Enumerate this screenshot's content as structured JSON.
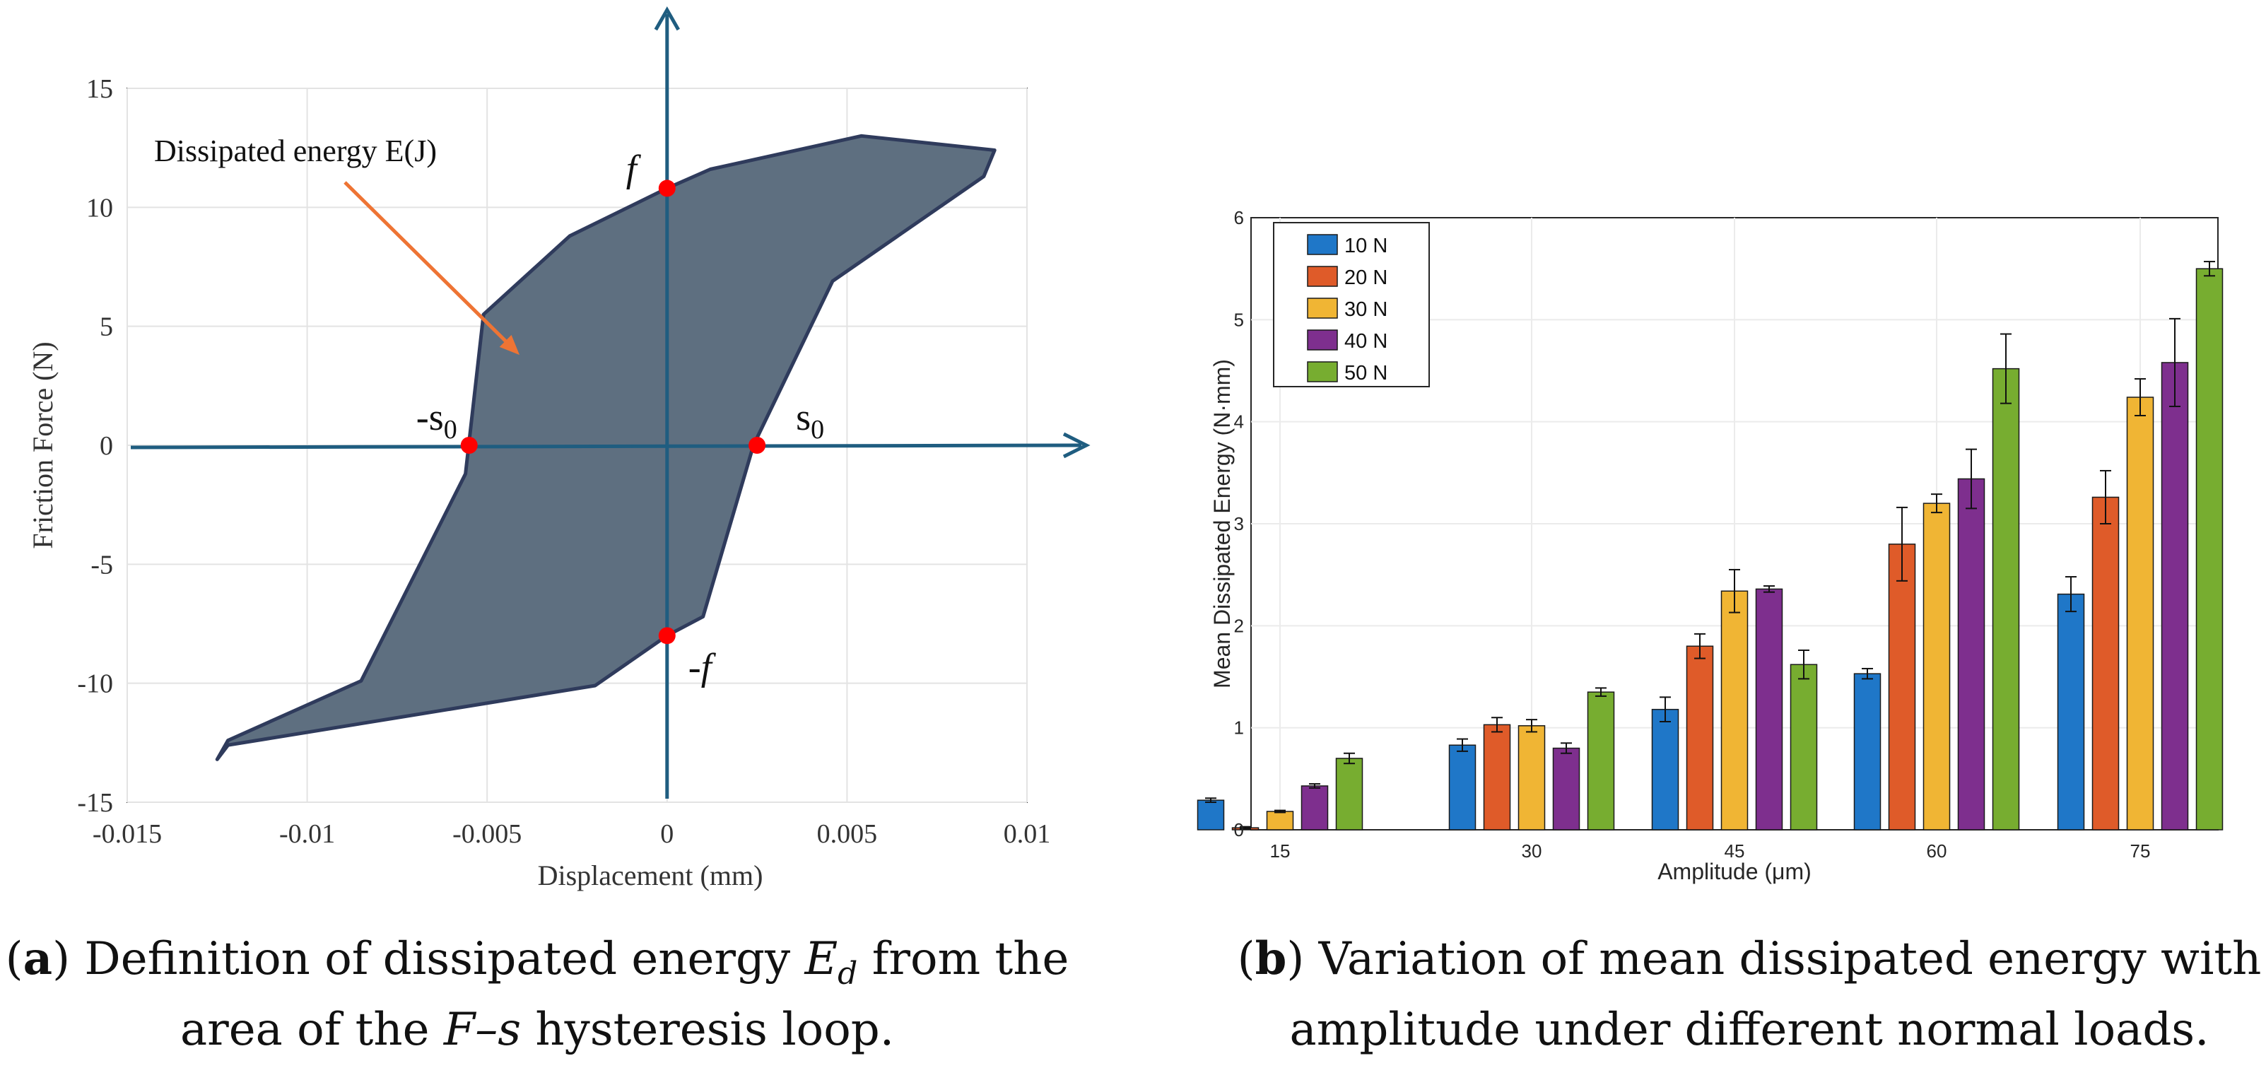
{
  "chart_data": [
    {
      "id": "a",
      "type": "area",
      "title": "",
      "xlabel": "Displacement (mm)",
      "ylabel": "Friction Force (N)",
      "xlim": [
        -0.015,
        0.01
      ],
      "ylim": [
        -15,
        15
      ],
      "xticks": [
        -0.015,
        -0.01,
        -0.005,
        0,
        0.005,
        0.01
      ],
      "xtick_labels": [
        "-0.015",
        "-0.01",
        "-0.005",
        "0",
        "0.005",
        "0.01"
      ],
      "yticks": [
        15,
        10,
        5,
        0,
        -5,
        -10,
        -15
      ],
      "ytick_labels": [
        "15",
        "10",
        "5",
        "0",
        "-5",
        "-10",
        "-15"
      ],
      "grid": true,
      "loop": [
        [
          -0.0125,
          -13.2
        ],
        [
          -0.0122,
          -12.4
        ],
        [
          -0.0085,
          -9.9
        ],
        [
          -0.0056,
          -1.2
        ],
        [
          -0.0051,
          5.5
        ],
        [
          -0.0027,
          8.8
        ],
        [
          0,
          10.8
        ],
        [
          0.0012,
          11.6
        ],
        [
          0.0054,
          13.0
        ],
        [
          0.0091,
          12.4
        ],
        [
          0.0088,
          11.3
        ],
        [
          0.0046,
          6.9
        ],
        [
          0.0024,
          0
        ],
        [
          0.001,
          -7.2
        ],
        [
          0,
          -8.0
        ],
        [
          -0.002,
          -10.1
        ],
        [
          -0.0122,
          -12.6
        ]
      ],
      "points": [
        {
          "x": -0.0055,
          "y": 0,
          "label": "-s0",
          "sub": "0"
        },
        {
          "x": 0.0025,
          "y": 0,
          "label": "s0",
          "sub": "0"
        },
        {
          "x": 0,
          "y": 10.8,
          "label": "f"
        },
        {
          "x": 0,
          "y": -8.0,
          "label": "-f"
        }
      ],
      "annotation": {
        "text": "Dissipated energy E(J)",
        "arrow_to": [
          -0.0041,
          3.8
        ]
      },
      "caption": {
        "tag": "a",
        "line1": "Definition of dissipated energy",
        "symbol": "E",
        "symbol_sub": "d",
        "line1_end": "from the",
        "line2_pre": "area of the",
        "line2_symbol": "F–s",
        "line2_post": "hysteresis loop."
      },
      "colors": {
        "fill": "#5e6f80",
        "edge": "#2f3b5c",
        "axis": "#1f5d80",
        "point": "#ff0000",
        "arrow": "#ee7434"
      }
    },
    {
      "id": "b",
      "type": "bar",
      "title": "",
      "xlabel": "Amplitude (μm)",
      "ylabel": "Mean Dissipated Energy (N·mm)",
      "categories": [
        "15",
        "30",
        "45",
        "60",
        "75"
      ],
      "ylim": [
        0,
        6
      ],
      "yticks": [
        0,
        1,
        2,
        3,
        4,
        5,
        6
      ],
      "grid": true,
      "legend_position": "top-left",
      "series": [
        {
          "name": "10 N",
          "color": "#1f77c8",
          "values": [
            0.29,
            0.83,
            1.18,
            1.53,
            2.31
          ],
          "err": [
            0.02,
            0.06,
            0.12,
            0.05,
            0.17
          ]
        },
        {
          "name": "20 N",
          "color": "#df5b29",
          "values": [
            0.02,
            1.03,
            1.8,
            2.8,
            3.26
          ],
          "err": [
            0.01,
            0.07,
            0.12,
            0.36,
            0.26
          ]
        },
        {
          "name": "30 N",
          "color": "#f0b534",
          "values": [
            0.18,
            1.02,
            2.34,
            3.2,
            4.24
          ],
          "err": [
            0.01,
            0.06,
            0.21,
            0.09,
            0.18
          ]
        },
        {
          "name": "40 N",
          "color": "#7e2f8e",
          "values": [
            0.43,
            0.8,
            2.36,
            3.44,
            4.58
          ],
          "err": [
            0.02,
            0.05,
            0.03,
            0.29,
            0.43
          ]
        },
        {
          "name": "50 N",
          "color": "#77ad30",
          "values": [
            0.7,
            1.35,
            1.62,
            4.52,
            5.5
          ],
          "err": [
            0.05,
            0.04,
            0.14,
            0.34,
            0.07
          ]
        }
      ],
      "caption": {
        "tag": "b",
        "line1": "Variation of mean dissipated energy with",
        "line2": "amplitude under different normal loads."
      }
    }
  ]
}
